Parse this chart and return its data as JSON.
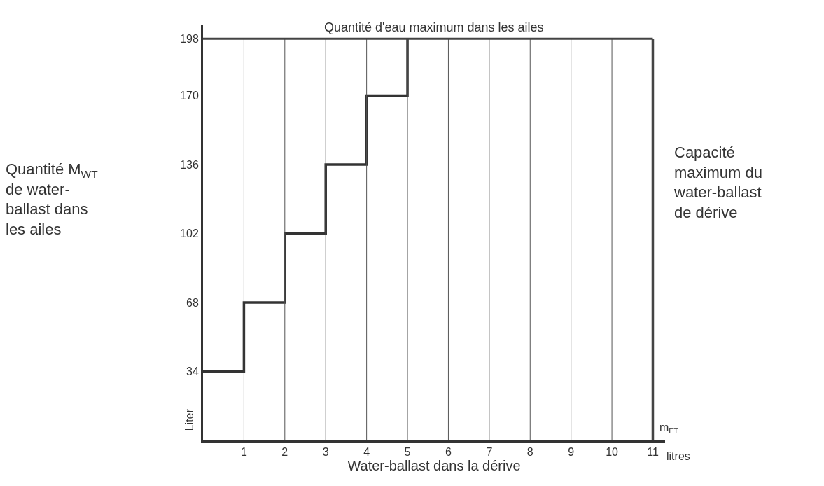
{
  "chart_data": {
    "type": "step",
    "xlabel": "Water-ballast dans la dérive",
    "x": [
      0,
      1,
      2,
      3,
      4,
      5
    ],
    "series": [
      {
        "color": "#333333",
        "values": [
          34,
          68,
          102,
          136,
          170,
          198
        ]
      }
    ],
    "xlim": [
      0,
      11.3
    ],
    "xticks": [
      1,
      2,
      3,
      4,
      5,
      6,
      7,
      8,
      9,
      10,
      11
    ],
    "ylim": [
      0,
      205
    ],
    "yticks": [
      34,
      68,
      102,
      136,
      170,
      198
    ],
    "grid": "x",
    "line_style": "solid",
    "ref_lines": [
      {
        "axis": "y",
        "value": 198,
        "label": "Quantité d'eau maximum dans les ailes",
        "color": "#444444"
      },
      {
        "axis": "x",
        "value": 11,
        "label": "Capacité\nmaximum du\nwater-ballast\nde dérive",
        "color": "#444444"
      }
    ],
    "annotations": [
      "Quantité M$_{WT}$\nde water-\nballast dans\nles ailes",
      "Liter",
      "m$_{FT}$",
      "litres"
    ]
  }
}
